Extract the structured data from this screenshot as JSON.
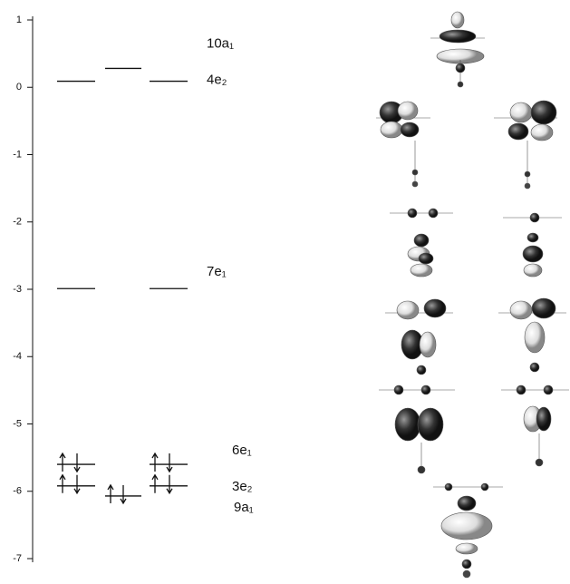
{
  "chart_data": {
    "type": "energy-level",
    "ylim": [
      -7,
      1
    ],
    "yticks": [
      1,
      0,
      -1,
      -2,
      -3,
      -4,
      -5,
      -6,
      -7
    ],
    "levels": [
      {
        "label": "10a₁",
        "value": 0.28,
        "columns": [
          1
        ],
        "occupied": false
      },
      {
        "label": "4e₂",
        "value": 0.09,
        "columns": [
          0,
          2
        ],
        "occupied": false
      },
      {
        "label": "7e₁",
        "value": -2.99,
        "columns": [
          0,
          2
        ],
        "occupied": false
      },
      {
        "label": "6e₁",
        "value": -5.6,
        "columns": [
          0,
          2
        ],
        "occupied": true
      },
      {
        "label": "3e₂",
        "value": -5.92,
        "columns": [
          0,
          2
        ],
        "occupied": true
      },
      {
        "label": "9a₁",
        "value": -6.07,
        "columns": [
          1
        ],
        "occupied": true
      }
    ],
    "color": "#111111"
  }
}
